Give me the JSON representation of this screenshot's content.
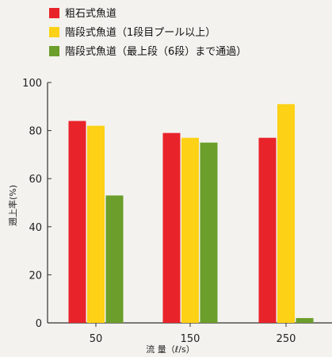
{
  "chart_data": {
    "type": "bar",
    "categories": [
      "50",
      "150",
      "250"
    ],
    "series": [
      {
        "name": "粗石式魚道",
        "color": "#e8232a",
        "values": [
          84,
          79,
          77
        ]
      },
      {
        "name": "階段式魚道（1段目プール以上）",
        "color": "#fcd116",
        "values": [
          82,
          77,
          91
        ]
      },
      {
        "name": "階段式魚道（最上段（6段）まで通過）",
        "color": "#6b9e2b",
        "values": [
          53,
          75,
          2
        ]
      }
    ],
    "xlabel": "流 量（ℓ/s）",
    "ylabel": "遡上率(%)",
    "ylim": [
      0,
      100
    ],
    "yticks": [
      0,
      20,
      40,
      60,
      80,
      100
    ],
    "grid": false,
    "legend_position": "top-left"
  }
}
